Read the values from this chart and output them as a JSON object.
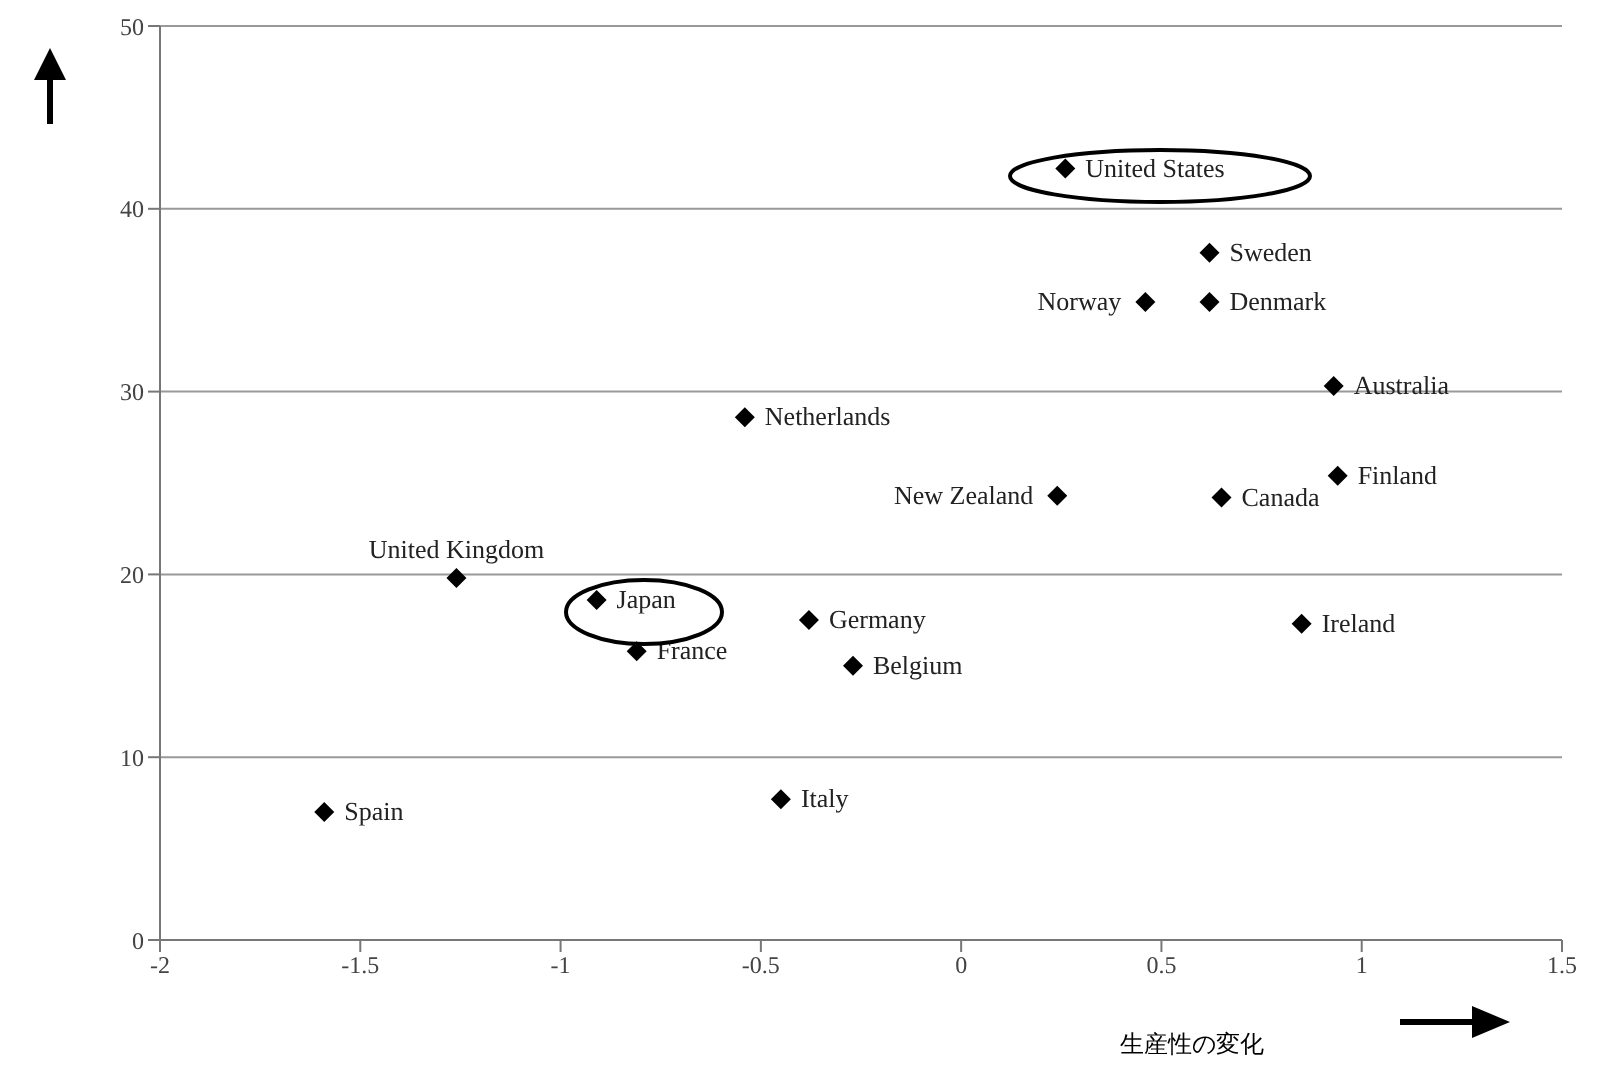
{
  "chart_data": {
    "type": "scatter",
    "xlabel": "生産性の変化",
    "x": [
      0.26,
      0.62,
      0.46,
      0.62,
      0.93,
      -0.54,
      0.24,
      0.65,
      0.94,
      -1.26,
      -0.91,
      -0.81,
      -0.38,
      -0.27,
      0.85,
      -1.59,
      -0.45
    ],
    "values": [
      42.2,
      37.6,
      34.9,
      34.9,
      30.3,
      28.6,
      24.3,
      24.2,
      25.4,
      19.8,
      18.6,
      15.8,
      17.5,
      15.0,
      17.3,
      7.0,
      7.7
    ],
    "color": "#000000",
    "marker": "diamond",
    "grid": "y",
    "legend": false,
    "xlim": [
      -2,
      1.5
    ],
    "xticks": [
      -2,
      -1.5,
      -1,
      -0.5,
      0,
      0.5,
      1,
      1.5
    ],
    "ylim": [
      0,
      50
    ],
    "yticks": [
      0,
      10,
      20,
      30,
      40,
      50
    ],
    "annotations": [
      {
        "text": "United States",
        "x": 0.26,
        "y": 42.2
      },
      {
        "text": "Sweden",
        "x": 0.62,
        "y": 37.6
      },
      {
        "text": "Norway",
        "x": 0.46,
        "y": 34.9
      },
      {
        "text": "Denmark",
        "x": 0.62,
        "y": 34.9
      },
      {
        "text": "Australia",
        "x": 0.93,
        "y": 30.3
      },
      {
        "text": "Netherlands",
        "x": -0.54,
        "y": 28.6
      },
      {
        "text": "New Zealand",
        "x": 0.24,
        "y": 24.3
      },
      {
        "text": "Canada",
        "x": 0.65,
        "y": 24.2
      },
      {
        "text": "Finland",
        "x": 0.94,
        "y": 25.4
      },
      {
        "text": "United Kingdom",
        "x": -1.26,
        "y": 19.8
      },
      {
        "text": "Japan",
        "x": -0.91,
        "y": 18.6
      },
      {
        "text": "France",
        "x": -0.81,
        "y": 15.8
      },
      {
        "text": "Germany",
        "x": -0.38,
        "y": 17.5
      },
      {
        "text": "Belgium",
        "x": -0.27,
        "y": 15.0
      },
      {
        "text": "Ireland",
        "x": 0.85,
        "y": 17.3
      },
      {
        "text": "Spain",
        "x": -1.59,
        "y": 7.0
      },
      {
        "text": "Italy",
        "x": -0.45,
        "y": 7.7
      }
    ]
  }
}
